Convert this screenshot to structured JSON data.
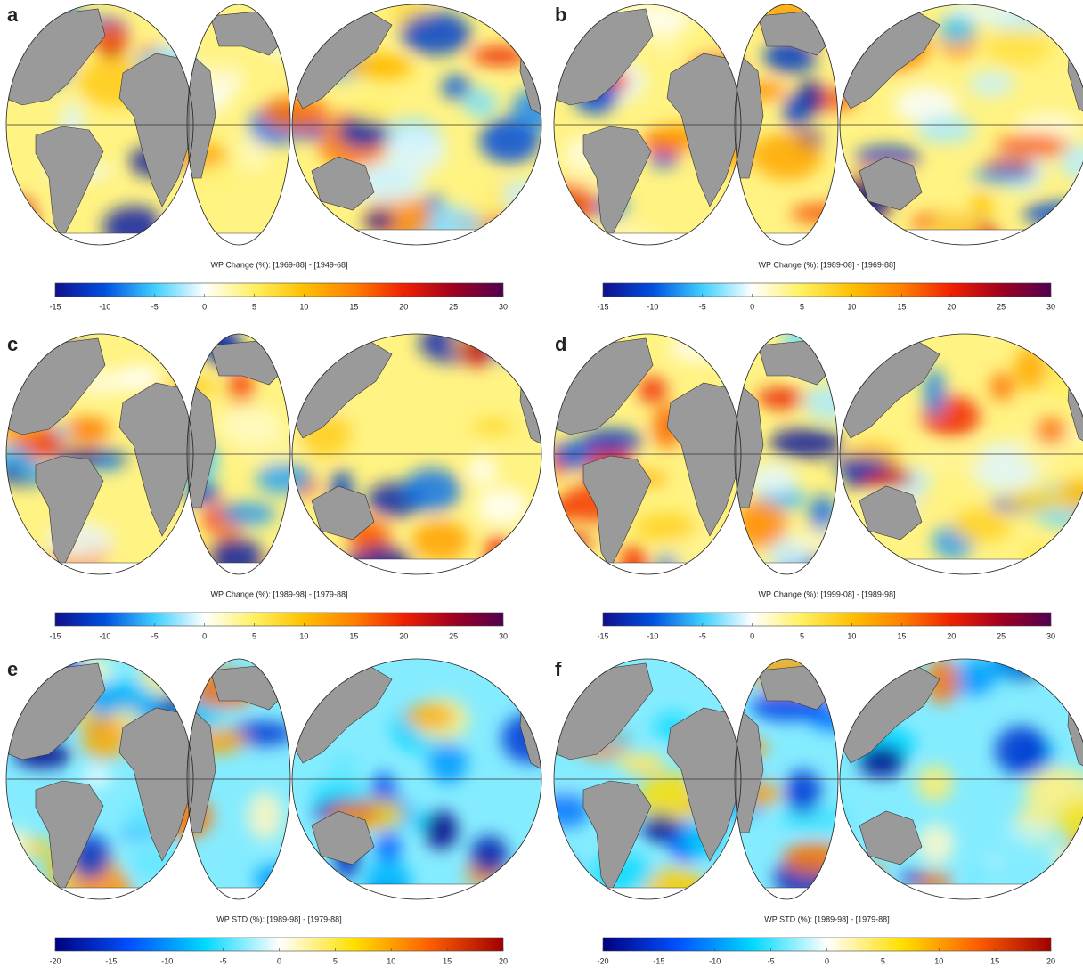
{
  "panels": [
    {
      "label": "a",
      "colorbar": {
        "title": "WP Change (%): [1969-88] - [1949-68]",
        "lim": [
          -15,
          30
        ],
        "ticks": [
          -15,
          -10,
          -5,
          0,
          5,
          10,
          15,
          20,
          25,
          30
        ],
        "colors": [
          "#10108c",
          "#0050e0",
          "#40d0ff",
          "#ffffff",
          "#fff060",
          "#ffc000",
          "#ff8000",
          "#f02000",
          "#a00020",
          "#500050"
        ]
      }
    },
    {
      "label": "b",
      "colorbar": {
        "title": "WP Change (%): [1989-08] - [1969-88]",
        "lim": [
          -15,
          30
        ],
        "ticks": [
          -15,
          -10,
          -5,
          0,
          5,
          10,
          15,
          20,
          25,
          30
        ],
        "colors": [
          "#10108c",
          "#0050e0",
          "#40d0ff",
          "#ffffff",
          "#fff060",
          "#ffc000",
          "#ff8000",
          "#f02000",
          "#a00020",
          "#500050"
        ]
      }
    },
    {
      "label": "c",
      "colorbar": {
        "title": "WP Change (%): [1989-98] - [1979-88]",
        "lim": [
          -15,
          30
        ],
        "ticks": [
          -15,
          -10,
          -5,
          0,
          5,
          10,
          15,
          20,
          25,
          30
        ],
        "colors": [
          "#10108c",
          "#0050e0",
          "#40d0ff",
          "#ffffff",
          "#fff060",
          "#ffc000",
          "#ff8000",
          "#f02000",
          "#a00020",
          "#500050"
        ]
      }
    },
    {
      "label": "d",
      "colorbar": {
        "title": "WP Change (%): [1999-08] - [1989-98]",
        "lim": [
          -15,
          30
        ],
        "ticks": [
          -15,
          -10,
          -5,
          0,
          5,
          10,
          15,
          20,
          25,
          30
        ],
        "colors": [
          "#10108c",
          "#0050e0",
          "#40d0ff",
          "#ffffff",
          "#fff060",
          "#ffc000",
          "#ff8000",
          "#f02000",
          "#a00020",
          "#500050"
        ]
      }
    },
    {
      "label": "e",
      "colorbar": {
        "title": "WP STD (%): [1989-98] - [1979-88]",
        "lim": [
          -20,
          20
        ],
        "ticks": [
          -20,
          -15,
          -10,
          -5,
          0,
          5,
          10,
          15,
          20
        ],
        "colors": [
          "#00007f",
          "#0050ff",
          "#00d8ff",
          "#ffffff",
          "#ffe000",
          "#ff6000",
          "#a00000"
        ]
      }
    },
    {
      "label": "f",
      "colorbar": {
        "title": "WP STD (%): [1989-98] - [1979-88]",
        "lim": [
          -20,
          20
        ],
        "ticks": [
          -20,
          -15,
          -10,
          -5,
          0,
          5,
          10,
          15,
          20
        ],
        "colors": [
          "#00007f",
          "#0050ff",
          "#00d8ff",
          "#ffffff",
          "#ffe000",
          "#ff6000",
          "#a00000"
        ]
      }
    }
  ]
}
